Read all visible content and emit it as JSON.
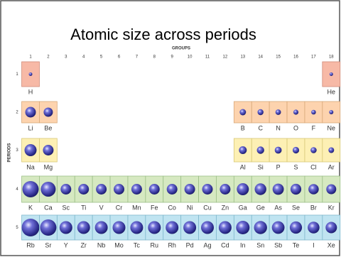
{
  "title": "Atomic size across periods",
  "groups_label": "GROUPS",
  "periods_label": "PERIODS",
  "groups": [
    "1",
    "2",
    "3",
    "4",
    "5",
    "6",
    "7",
    "8",
    "9",
    "10",
    "11",
    "12",
    "13",
    "14",
    "15",
    "16",
    "17",
    "18"
  ],
  "rows": [
    {
      "label": "1",
      "elements": [
        "H",
        null,
        null,
        null,
        null,
        null,
        null,
        null,
        null,
        null,
        null,
        null,
        null,
        null,
        null,
        null,
        null,
        "He"
      ]
    },
    {
      "label": "2",
      "elements": [
        "Li",
        "Be",
        null,
        null,
        null,
        null,
        null,
        null,
        null,
        null,
        null,
        null,
        "B",
        "C",
        "N",
        "O",
        "F",
        "Ne"
      ]
    },
    {
      "label": "3",
      "elements": [
        "Na",
        "Mg",
        null,
        null,
        null,
        null,
        null,
        null,
        null,
        null,
        null,
        null,
        "Al",
        "Si",
        "P",
        "S",
        "Cl",
        "Ar"
      ]
    },
    {
      "label": "4",
      "elements": [
        "K",
        "Ca",
        "Sc",
        "Ti",
        "V",
        "Cr",
        "Mn",
        "Fe",
        "Co",
        "Ni",
        "Cu",
        "Zn",
        "Ga",
        "Ge",
        "As",
        "Se",
        "Br",
        "Kr"
      ]
    },
    {
      "label": "5",
      "elements": [
        "Rb",
        "Sr",
        "Y",
        "Zr",
        "Nb",
        "Mo",
        "Tc",
        "Ru",
        "Rh",
        "Pd",
        "Ag",
        "Cd",
        "In",
        "Sn",
        "Sb",
        "Te",
        "I",
        "Xe"
      ]
    }
  ]
}
